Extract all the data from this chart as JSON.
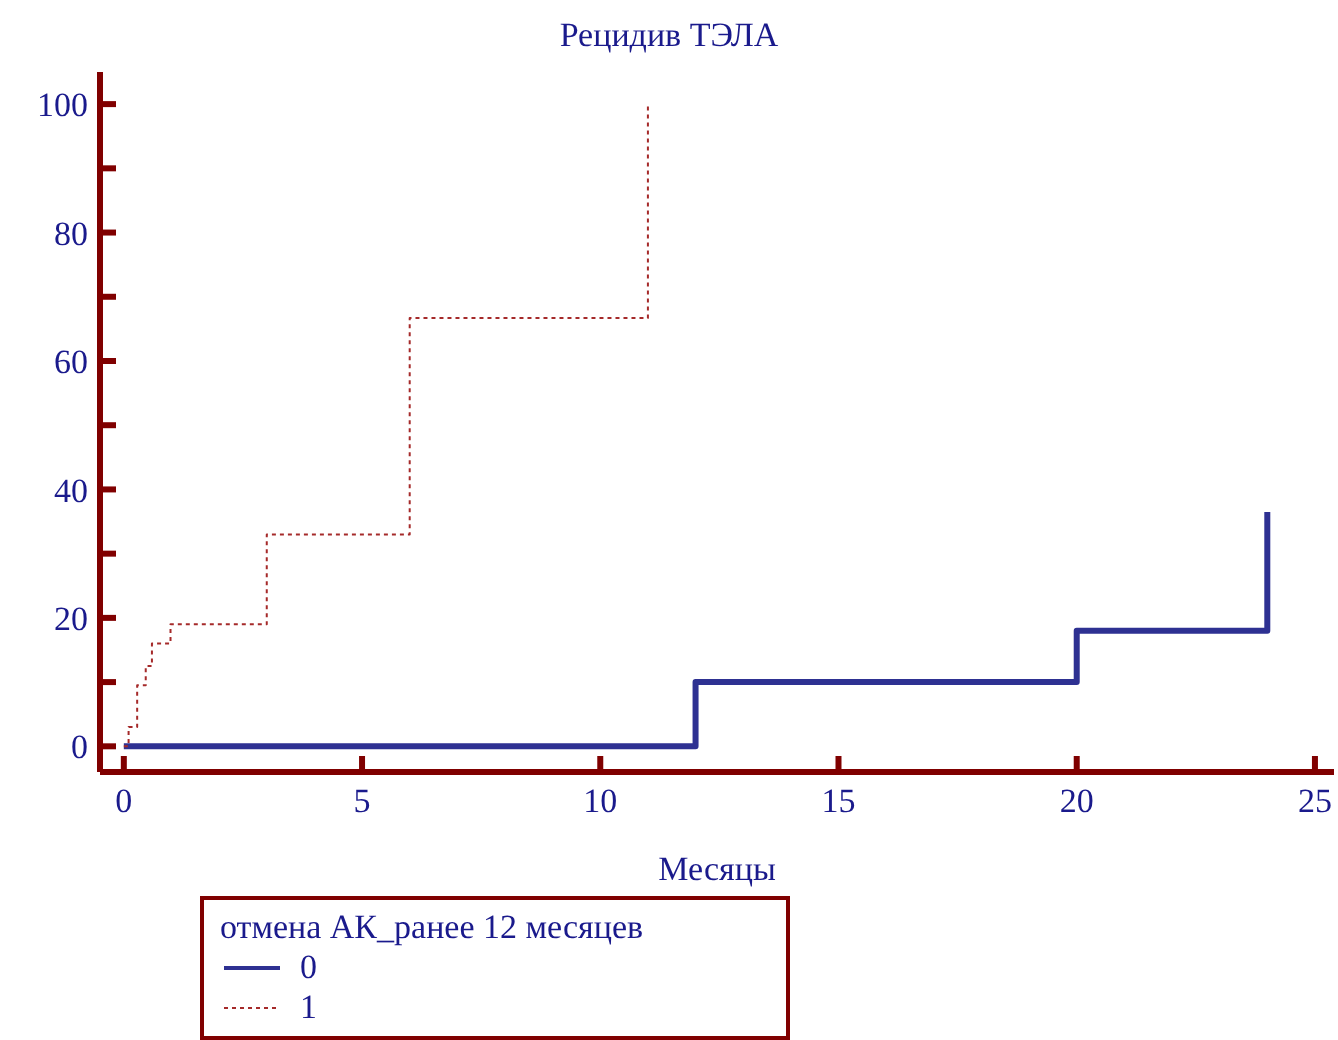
{
  "chart_data": {
    "type": "step",
    "title": "Рецидив ТЭЛА",
    "xlabel": "Месяцы",
    "legend_title": "отмена АК_ранее 12 месяцев",
    "legend": "bottom",
    "grid": false,
    "xlim": [
      -0.5,
      25.4
    ],
    "xticks": [
      0,
      5,
      10,
      15,
      20,
      25
    ],
    "ylim": [
      -4,
      105
    ],
    "yticks": [
      0,
      {
        "value": 10,
        "label": null
      },
      20,
      {
        "value": 30,
        "label": null
      },
      40,
      {
        "value": 50,
        "label": null
      },
      60,
      {
        "value": 70,
        "label": null
      },
      80,
      {
        "value": 90,
        "label": null
      },
      100
    ],
    "series": [
      {
        "name": "0",
        "color": "#2e3192",
        "line_style": "solid",
        "x": [
          0,
          12,
          20,
          24
        ],
        "values": [
          0,
          10,
          18,
          36.5
        ]
      },
      {
        "name": "1",
        "color": "#a52a2a",
        "line_style": "dotted",
        "x": [
          0,
          0.1,
          0.28,
          0.46,
          0.59,
          0.98,
          3,
          6,
          11
        ],
        "values": [
          0,
          3,
          9.5,
          12.5,
          16,
          19,
          33,
          66.7,
          100
        ]
      }
    ]
  }
}
